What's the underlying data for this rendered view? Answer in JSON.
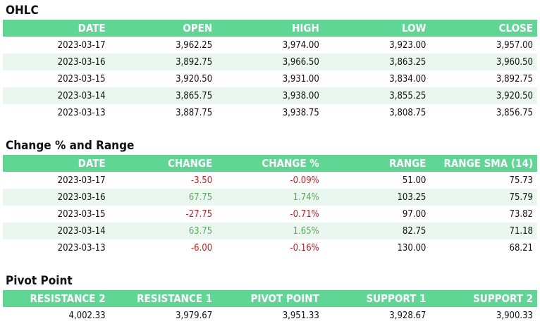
{
  "ohlc": {
    "title": "OHLC",
    "columns": [
      "DATE",
      "OPEN",
      "HIGH",
      "LOW",
      "CLOSE"
    ],
    "rows": [
      [
        "2023-03-17",
        "3,962.25",
        "3,974.00",
        "3,923.00",
        "3,957.00"
      ],
      [
        "2023-03-16",
        "3,892.75",
        "3,966.50",
        "3,863.25",
        "3,960.50"
      ],
      [
        "2023-03-15",
        "3,920.50",
        "3,931.00",
        "3,834.00",
        "3,892.75"
      ],
      [
        "2023-03-14",
        "3,865.75",
        "3,938.00",
        "3,855.25",
        "3,920.50"
      ],
      [
        "2023-03-13",
        "3,887.75",
        "3,938.75",
        "3,808.75",
        "3,856.75"
      ]
    ]
  },
  "change": {
    "title": "Change % and Range",
    "columns": [
      "DATE",
      "CHANGE",
      "CHANGE %",
      "RANGE",
      "RANGE SMA (14)"
    ],
    "rows": [
      [
        "2023-03-17",
        "-3.50",
        "-0.09%",
        "51.00",
        "75.73"
      ],
      [
        "2023-03-16",
        "67.75",
        "1.74%",
        "103.25",
        "75.79"
      ],
      [
        "2023-03-15",
        "-27.75",
        "-0.71%",
        "97.00",
        "73.82"
      ],
      [
        "2023-03-14",
        "63.75",
        "1.65%",
        "82.75",
        "71.18"
      ],
      [
        "2023-03-13",
        "-6.00",
        "-0.16%",
        "130.00",
        "68.21"
      ]
    ]
  },
  "pivot": {
    "title": "Pivot Point",
    "columns": [
      "RESISTANCE 2",
      "RESISTANCE 1",
      "PIVOT POINT",
      "SUPPORT 1",
      "SUPPORT 2"
    ],
    "rows": [
      [
        "4,002.33",
        "3,979.67",
        "3,951.33",
        "3,928.67",
        "3,900.33"
      ]
    ]
  },
  "colors": {
    "header_bg": "#5fd694",
    "header_text": "#ffffff",
    "alt_row_bg": "#e9f7ee",
    "negative": "#cc1a1a",
    "positive": "#59a85a"
  }
}
